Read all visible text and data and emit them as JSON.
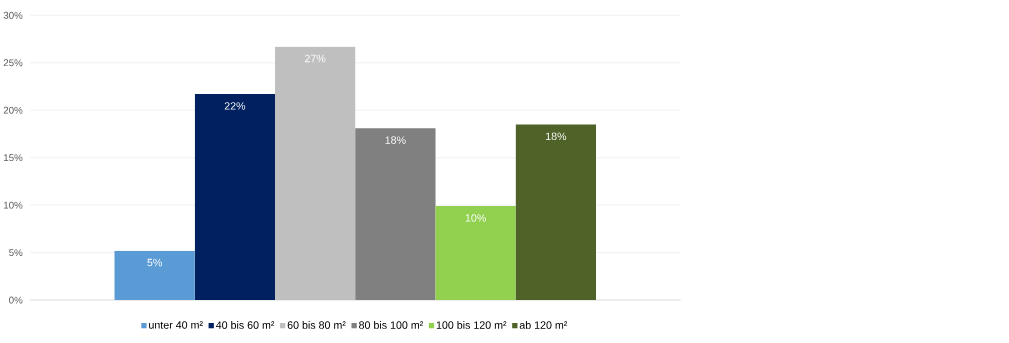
{
  "chart_data": {
    "type": "bar",
    "categories": [
      null
    ],
    "series": [
      {
        "name": "unter 40 m²",
        "color": "#5b9bd5",
        "values": [
          5.2
        ],
        "value_labels": [
          "5%"
        ]
      },
      {
        "name": "40 bis 60 m²",
        "color": "#002060",
        "values": [
          21.7
        ],
        "value_labels": [
          "22%"
        ]
      },
      {
        "name": "60 bis 80 m²",
        "color": "#bfbfbf",
        "values": [
          26.7
        ],
        "value_labels": [
          "27%"
        ]
      },
      {
        "name": "80 bis 100 m²",
        "color": "#808080",
        "values": [
          18.1
        ],
        "value_labels": [
          "18%"
        ]
      },
      {
        "name": "100 bis 120 m²",
        "color": "#92d050",
        "values": [
          9.9
        ],
        "value_labels": [
          "10%"
        ]
      },
      {
        "name": "ab 120 m²",
        "color": "#4f6228",
        "values": [
          18.5
        ],
        "value_labels": [
          "18%"
        ]
      }
    ],
    "ylim": [
      0,
      30
    ],
    "yticks": [
      {
        "value": 0,
        "label": "0%"
      },
      {
        "value": 5,
        "label": "5%"
      },
      {
        "value": 10,
        "label": "10%"
      },
      {
        "value": 15,
        "label": "15%"
      },
      {
        "value": 20,
        "label": "20%"
      },
      {
        "value": 25,
        "label": "25%"
      },
      {
        "value": 30,
        "label": "30%"
      }
    ],
    "grid": "y",
    "legend": "bottom"
  }
}
